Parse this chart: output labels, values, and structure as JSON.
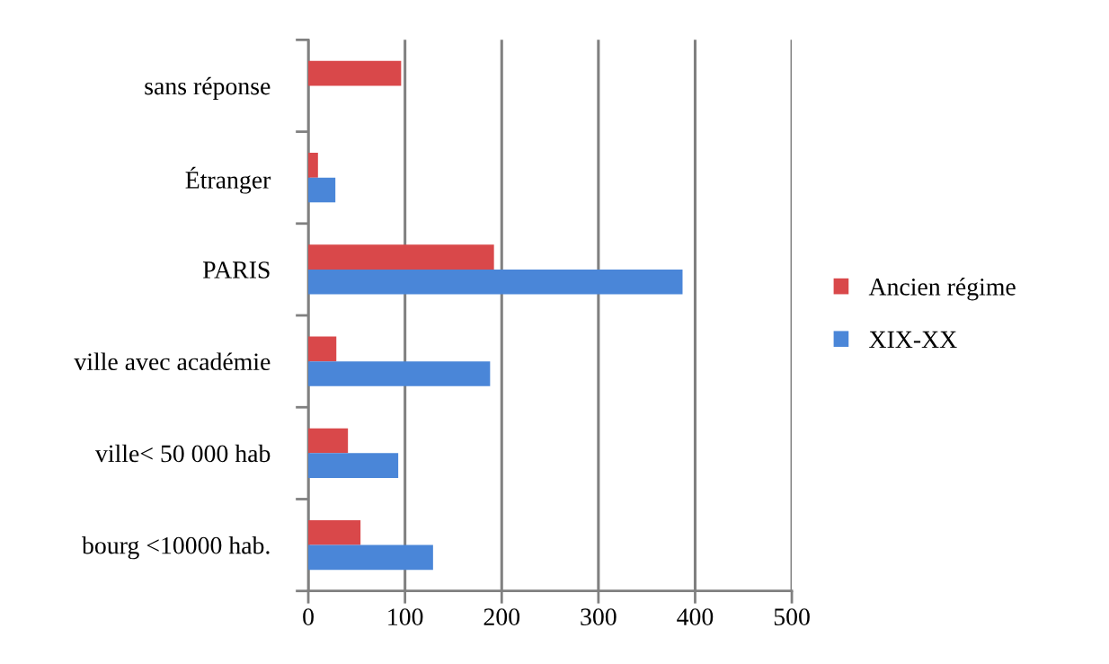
{
  "chart_data": {
    "type": "bar",
    "orientation": "horizontal",
    "categories": [
      "sans réponse",
      "Étranger",
      "PARIS",
      "ville avec académie",
      "ville< 50 000 hab",
      "bourg <10000 hab."
    ],
    "series": [
      {
        "name": "Ancien régime",
        "color": "#d9484a",
        "values": [
          96,
          10,
          192,
          29,
          41,
          54
        ]
      },
      {
        "name": "XIX-XX",
        "color": "#4a86d8",
        "values": [
          null,
          28,
          387,
          188,
          93,
          129
        ]
      }
    ],
    "xlim": [
      0,
      500
    ],
    "xticks": [
      0,
      100,
      200,
      300,
      400,
      500
    ],
    "grid": "x",
    "legend": "right"
  }
}
